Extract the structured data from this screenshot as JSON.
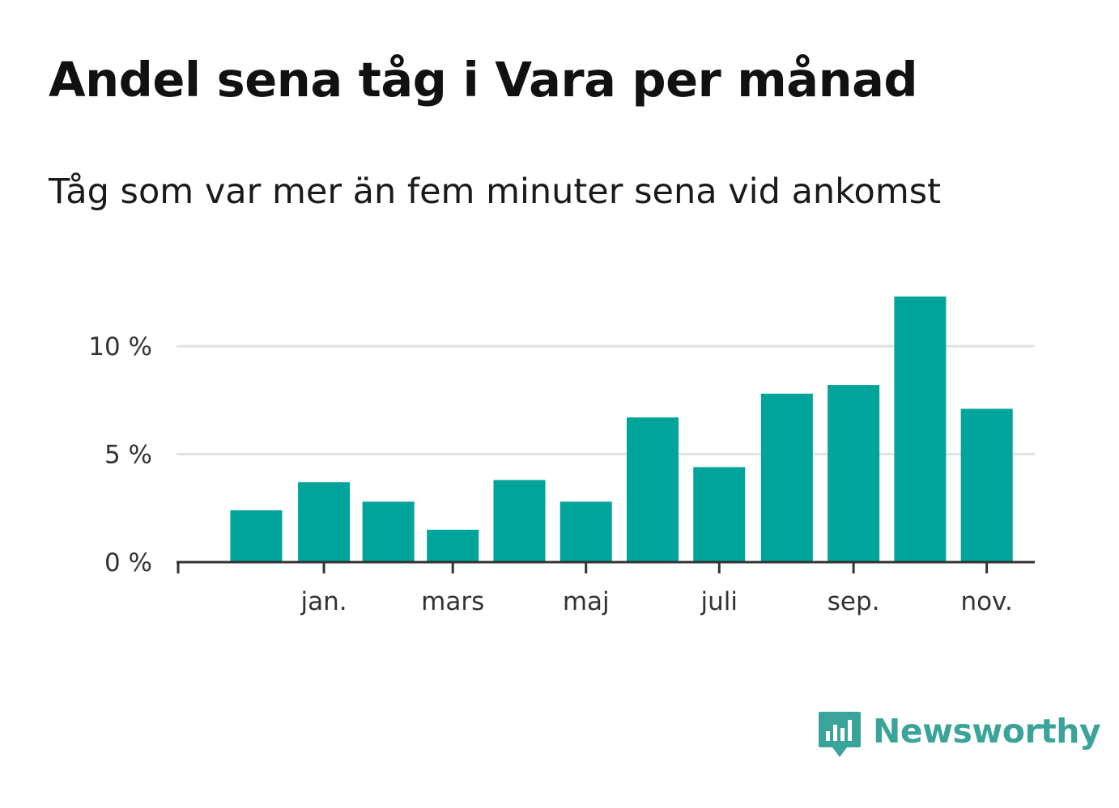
{
  "title": "Andel sena tåg i Vara per månad",
  "subtitle": "Tåg som var mer än fem minuter sena vid ankomst",
  "brand": {
    "name": "Newsworthy",
    "color": "#3aa39a",
    "icon": "bar-chart-speech-bubble-icon"
  },
  "colors": {
    "bar": "#00a49a",
    "grid": "#e2e2e2",
    "axis": "#333333"
  },
  "chart_data": {
    "type": "bar",
    "title": "Andel sena tåg i Vara per månad",
    "subtitle": "Tåg som var mer än fem minuter sena vid ankomst",
    "xlabel": "",
    "ylabel": "",
    "ylim": [
      0,
      13
    ],
    "grid": true,
    "x_tick_labels": [
      "jan.",
      "mars",
      "maj",
      "juli",
      "sep.",
      "nov."
    ],
    "y_ticks": [
      {
        "value": 0,
        "label": "0 %"
      },
      {
        "value": 5,
        "label": "5 %"
      },
      {
        "value": 10,
        "label": "10 %"
      }
    ],
    "series": [
      {
        "name": "Andel sena tåg",
        "points": [
          {
            "date": "2022-12",
            "value": 2.4
          },
          {
            "date": "2023-01",
            "value": 3.7
          },
          {
            "date": "2023-02",
            "value": 2.8
          },
          {
            "date": "2023-03",
            "value": 1.5
          },
          {
            "date": "2023-04",
            "value": 3.8
          },
          {
            "date": "2023-05",
            "value": 2.8
          },
          {
            "date": "2023-06",
            "value": 6.7
          },
          {
            "date": "2023-07",
            "value": 4.4
          },
          {
            "date": "2023-08",
            "value": 7.8
          },
          {
            "date": "2023-09",
            "value": 8.2
          },
          {
            "date": "2023-10",
            "value": 12.3
          },
          {
            "date": "2023-11",
            "value": 7.1
          }
        ]
      }
    ],
    "x_ticks": [
      {
        "date": "2023-01",
        "label": "jan."
      },
      {
        "date": "2023-03",
        "label": "mars"
      },
      {
        "date": "2023-05",
        "label": "maj"
      },
      {
        "date": "2023-07",
        "label": "juli"
      },
      {
        "date": "2023-09",
        "label": "sep."
      },
      {
        "date": "2023-11",
        "label": "nov."
      }
    ],
    "x_range": [
      "2022-11-10",
      "2023-12-08"
    ]
  }
}
